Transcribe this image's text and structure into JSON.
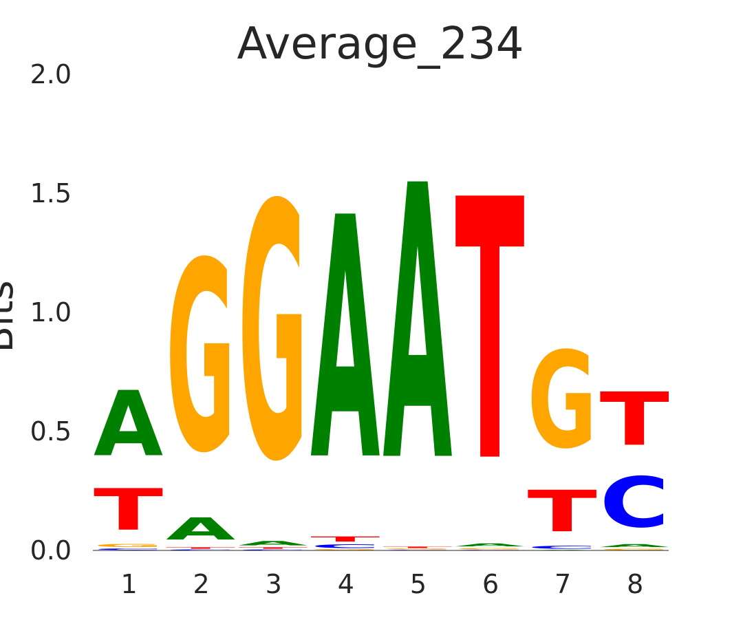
{
  "chart_data": {
    "type": "sequence-logo",
    "title": "Average_234",
    "ylabel": "Bits",
    "ylim": [
      0,
      2.0
    ],
    "yticks": [
      "0.0",
      "0.5",
      "1.0",
      "1.5",
      "2.0"
    ],
    "categories": [
      "1",
      "2",
      "3",
      "4",
      "5",
      "6",
      "7",
      "8"
    ],
    "colors": {
      "A": "#008000",
      "C": "#0000ff",
      "G": "#ffa500",
      "T": "#ff0000"
    },
    "positions": [
      {
        "position": "1",
        "stack": [
          {
            "letter": "C",
            "bits": 0.01
          },
          {
            "letter": "G",
            "bits": 0.02
          },
          {
            "letter": "T",
            "bits": 0.28
          },
          {
            "letter": "A",
            "bits": 0.44
          }
        ]
      },
      {
        "position": "2",
        "stack": [
          {
            "letter": "C",
            "bits": 0.005
          },
          {
            "letter": "T",
            "bits": 0.01
          },
          {
            "letter": "A",
            "bits": 0.15
          },
          {
            "letter": "G",
            "bits": 1.28
          }
        ]
      },
      {
        "position": "3",
        "stack": [
          {
            "letter": "C",
            "bits": 0.005
          },
          {
            "letter": "T",
            "bits": 0.01
          },
          {
            "letter": "A",
            "bits": 0.03
          },
          {
            "letter": "G",
            "bits": 1.72
          }
        ]
      },
      {
        "position": "4",
        "stack": [
          {
            "letter": "G",
            "bits": 0.005
          },
          {
            "letter": "C",
            "bits": 0.025
          },
          {
            "letter": "T",
            "bits": 0.035
          },
          {
            "letter": "A",
            "bits": 1.63
          }
        ]
      },
      {
        "position": "5",
        "stack": [
          {
            "letter": "C",
            "bits": 0.003
          },
          {
            "letter": "G",
            "bits": 0.005
          },
          {
            "letter": "T",
            "bits": 0.01
          },
          {
            "letter": "A",
            "bits": 1.85
          }
        ]
      },
      {
        "position": "6",
        "stack": [
          {
            "letter": "C",
            "bits": 0.003
          },
          {
            "letter": "G",
            "bits": 0.01
          },
          {
            "letter": "A",
            "bits": 0.02
          },
          {
            "letter": "T",
            "bits": 1.76
          }
        ]
      },
      {
        "position": "7",
        "stack": [
          {
            "letter": "A",
            "bits": 0.003
          },
          {
            "letter": "C",
            "bits": 0.02
          },
          {
            "letter": "T",
            "bits": 0.28
          },
          {
            "letter": "G",
            "bits": 0.65
          }
        ]
      },
      {
        "position": "8",
        "stack": [
          {
            "letter": "G",
            "bits": 0.01
          },
          {
            "letter": "A",
            "bits": 0.02
          },
          {
            "letter": "C",
            "bits": 0.34
          },
          {
            "letter": "T",
            "bits": 0.36
          }
        ]
      }
    ],
    "grid": false,
    "legend": "none"
  }
}
